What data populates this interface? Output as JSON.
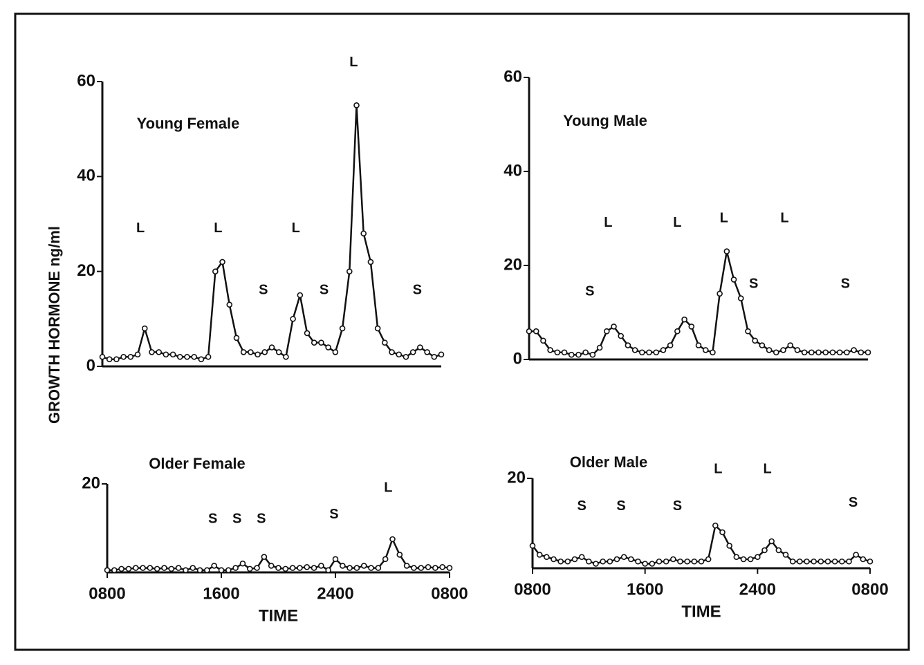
{
  "ylabel": "GROWTH HORMONE ng/ml",
  "chart_data": [
    {
      "type": "line",
      "title": "Young Female",
      "color": "#111111",
      "grid": false,
      "xlim": [
        8,
        32
      ],
      "ylim": [
        0,
        60
      ],
      "yticks": [
        0,
        20,
        40,
        60
      ],
      "x": [
        8,
        8.5,
        9,
        9.5,
        10,
        10.5,
        11,
        11.5,
        12,
        12.5,
        13,
        13.5,
        14,
        14.5,
        15,
        15.5,
        16,
        16.5,
        17,
        17.5,
        18,
        18.5,
        19,
        19.5,
        20,
        20.5,
        21,
        21.5,
        22,
        22.5,
        23,
        23.5,
        24,
        24.5,
        25,
        25.5,
        26,
        26.5,
        27,
        27.5,
        28,
        28.5,
        29,
        29.5,
        30,
        30.5,
        31,
        31.5,
        32
      ],
      "values": [
        2,
        1.5,
        1.5,
        2,
        2,
        2.5,
        8,
        3,
        3,
        2.5,
        2.5,
        2,
        2,
        2,
        1.5,
        2,
        20,
        22,
        13,
        6,
        3,
        3,
        2.5,
        3,
        4,
        3,
        2,
        10,
        15,
        7,
        5,
        5,
        4,
        3,
        8,
        20,
        55,
        28,
        22,
        8,
        5,
        3,
        2.5,
        2,
        3,
        4,
        3,
        2,
        2.5
      ],
      "annotations": [
        {
          "text": "L",
          "x": 10.7,
          "y": 29
        },
        {
          "text": "L",
          "x": 16.2,
          "y": 29
        },
        {
          "text": "S",
          "x": 19.4,
          "y": 16
        },
        {
          "text": "L",
          "x": 21.7,
          "y": 29
        },
        {
          "text": "S",
          "x": 23.7,
          "y": 16
        },
        {
          "text": "L",
          "x": 25.8,
          "y": 64
        },
        {
          "text": "S",
          "x": 30.3,
          "y": 16
        }
      ]
    },
    {
      "type": "line",
      "title": "Young Male",
      "color": "#111111",
      "grid": false,
      "xlim": [
        8,
        32
      ],
      "ylim": [
        0,
        60
      ],
      "yticks": [
        0,
        20,
        40,
        60
      ],
      "x": [
        8,
        8.5,
        9,
        9.5,
        10,
        10.5,
        11,
        11.5,
        12,
        12.5,
        13,
        13.5,
        14,
        14.5,
        15,
        15.5,
        16,
        16.5,
        17,
        17.5,
        18,
        18.5,
        19,
        19.5,
        20,
        20.5,
        21,
        21.5,
        22,
        22.5,
        23,
        23.5,
        24,
        24.5,
        25,
        25.5,
        26,
        26.5,
        27,
        27.5,
        28,
        28.5,
        29,
        29.5,
        30,
        30.5,
        31,
        31.5,
        32
      ],
      "values": [
        6,
        6,
        4,
        2,
        1.5,
        1.5,
        1,
        1,
        1.5,
        1,
        2.5,
        6,
        7,
        5,
        3,
        2,
        1.5,
        1.5,
        1.5,
        2,
        3,
        6,
        8.5,
        7,
        3,
        2,
        1.5,
        14,
        23,
        17,
        13,
        6,
        4,
        3,
        2,
        1.5,
        2,
        3,
        2,
        1.5,
        1.5,
        1.5,
        1.5,
        1.5,
        1.5,
        1.5,
        2,
        1.5,
        1.5
      ],
      "annotations": [
        {
          "text": "S",
          "x": 12.3,
          "y": 14.4
        },
        {
          "text": "L",
          "x": 13.6,
          "y": 29
        },
        {
          "text": "L",
          "x": 18.5,
          "y": 29
        },
        {
          "text": "L",
          "x": 21.8,
          "y": 30
        },
        {
          "text": "S",
          "x": 23.9,
          "y": 16
        },
        {
          "text": "L",
          "x": 26.1,
          "y": 30
        },
        {
          "text": "S",
          "x": 30.4,
          "y": 16
        }
      ]
    },
    {
      "type": "line",
      "title": "Older Female",
      "color": "#111111",
      "grid": false,
      "xlabel": "TIME",
      "xlim": [
        8,
        32
      ],
      "ylim": [
        0,
        20
      ],
      "yticks": [
        20
      ],
      "xticks": [
        {
          "value": 8,
          "label": "0800"
        },
        {
          "value": 16,
          "label": "1600"
        },
        {
          "value": 24,
          "label": "2400"
        },
        {
          "value": 32,
          "label": "0800"
        }
      ],
      "x": [
        8,
        8.5,
        9,
        9.5,
        10,
        10.5,
        11,
        11.5,
        12,
        12.5,
        13,
        13.5,
        14,
        14.5,
        15,
        15.5,
        16,
        16.5,
        17,
        17.5,
        18,
        18.5,
        19,
        19.5,
        20,
        20.5,
        21,
        21.5,
        22,
        22.5,
        23,
        23.5,
        24,
        24.5,
        25,
        25.5,
        26,
        26.5,
        27,
        27.5,
        28,
        28.5,
        29,
        29.5,
        30,
        30.5,
        31,
        31.5,
        32
      ],
      "values": [
        0.5,
        0.5,
        0.8,
        0.8,
        1,
        1,
        1,
        0.8,
        1,
        0.8,
        1,
        0.5,
        1,
        0.5,
        0.5,
        1.5,
        0.5,
        0.5,
        1,
        2,
        0.8,
        1,
        3.5,
        1.5,
        1,
        0.8,
        1,
        1,
        1.2,
        1,
        1.5,
        0.5,
        3,
        1.5,
        1,
        1,
        1.5,
        1,
        1,
        3,
        7.5,
        4,
        1.5,
        1,
        1,
        1.2,
        1,
        1.2,
        1
      ],
      "annotations": [
        {
          "text": "S",
          "x": 15.4,
          "y": 12
        },
        {
          "text": "S",
          "x": 17.1,
          "y": 12
        },
        {
          "text": "S",
          "x": 18.8,
          "y": 12
        },
        {
          "text": "S",
          "x": 23.9,
          "y": 13
        },
        {
          "text": "L",
          "x": 27.7,
          "y": 19
        }
      ]
    },
    {
      "type": "line",
      "title": "Older Male",
      "color": "#111111",
      "grid": false,
      "xlabel": "TIME",
      "xlim": [
        8,
        32
      ],
      "ylim": [
        0,
        20
      ],
      "yticks": [
        20
      ],
      "xticks": [
        {
          "value": 8,
          "label": "0800"
        },
        {
          "value": 16,
          "label": "1600"
        },
        {
          "value": 24,
          "label": "2400"
        },
        {
          "value": 32,
          "label": "0800"
        }
      ],
      "x": [
        8,
        8.5,
        9,
        9.5,
        10,
        10.5,
        11,
        11.5,
        12,
        12.5,
        13,
        13.5,
        14,
        14.5,
        15,
        15.5,
        16,
        16.5,
        17,
        17.5,
        18,
        18.5,
        19,
        19.5,
        20,
        20.5,
        21,
        21.5,
        22,
        22.5,
        23,
        23.5,
        24,
        24.5,
        25,
        25.5,
        26,
        26.5,
        27,
        27.5,
        28,
        28.5,
        29,
        29.5,
        30,
        30.5,
        31,
        31.5,
        32
      ],
      "values": [
        5,
        3,
        2.5,
        2,
        1.5,
        1.5,
        2,
        2.5,
        1.5,
        1,
        1.5,
        1.5,
        2,
        2.5,
        2,
        1.5,
        1,
        1,
        1.5,
        1.5,
        2,
        1.5,
        1.5,
        1.5,
        1.5,
        2,
        9.5,
        8,
        5,
        2.5,
        2,
        2,
        2.5,
        4,
        6,
        4,
        3,
        1.5,
        1.5,
        1.5,
        1.5,
        1.5,
        1.5,
        1.5,
        1.5,
        1.5,
        3,
        2,
        1.5
      ],
      "annotations": [
        {
          "text": "S",
          "x": 11.5,
          "y": 13.7
        },
        {
          "text": "S",
          "x": 14.3,
          "y": 13.7
        },
        {
          "text": "S",
          "x": 18.3,
          "y": 13.7
        },
        {
          "text": "L",
          "x": 21.2,
          "y": 22
        },
        {
          "text": "L",
          "x": 24.7,
          "y": 22
        },
        {
          "text": "S",
          "x": 30.8,
          "y": 14.5
        }
      ]
    }
  ]
}
